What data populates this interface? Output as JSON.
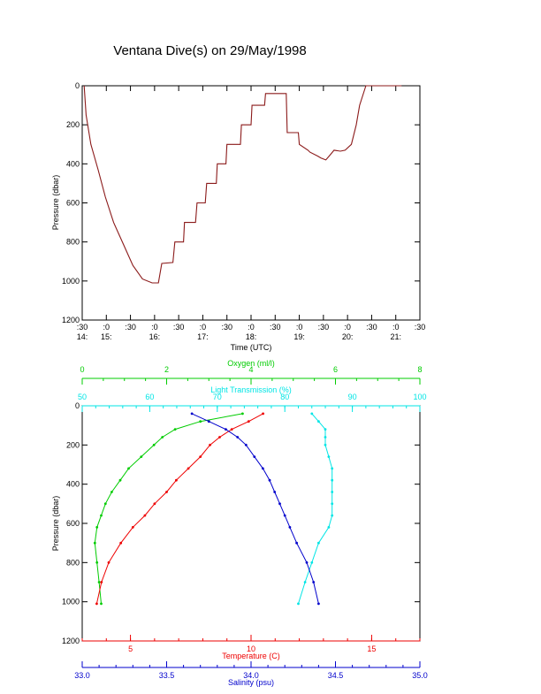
{
  "title": "Ventana Dive(s) on 29/May/1998",
  "colors": {
    "axis": "#000000",
    "trace_top": "#8b1a1a",
    "oxygen": "#00cc00",
    "transmission": "#00e5e5",
    "temperature": "#ee0000",
    "salinity": "#0000cc"
  },
  "chart_data": [
    {
      "type": "line",
      "title": "Ventana Dive(s) on 29/May/1998",
      "xlabel": "Time (UTC)",
      "ylabel": "Pressure (dbar)",
      "x_tick_minutes": [
        ":30",
        ":0",
        ":30",
        ":0",
        ":30",
        ":0",
        ":30",
        ":0",
        ":30",
        ":0",
        ":30",
        ":0",
        ":30",
        ":0",
        ":30"
      ],
      "x_tick_hours": [
        "14:",
        "15:",
        "",
        "16:",
        "",
        "17:",
        "",
        "18:",
        "",
        "19:",
        "",
        "20:",
        "",
        "21:",
        ""
      ],
      "xlim_hours": [
        14.5,
        21.5
      ],
      "ylim": [
        0,
        1200
      ],
      "y_reversed": true,
      "yticks": [
        0,
        200,
        400,
        600,
        800,
        1000,
        1200
      ],
      "series": [
        {
          "x_hours": [
            14.54,
            14.58,
            14.68,
            14.83,
            14.98,
            15.15,
            15.35,
            15.55,
            15.75,
            15.95,
            16.08,
            16.15,
            16.38,
            16.42,
            16.6,
            16.62,
            16.85,
            16.88,
            17.05,
            17.08,
            17.28,
            17.3,
            17.48,
            17.5,
            17.78,
            17.8,
            18.0,
            18.02,
            18.28,
            18.3,
            18.48,
            18.5,
            18.73,
            18.75,
            18.98,
            19.0,
            19.18,
            19.22,
            19.38,
            19.45,
            19.55,
            19.62,
            19.72,
            19.85,
            19.95,
            20.08,
            20.18,
            20.25,
            20.38,
            20.48,
            20.62,
            20.72,
            20.78,
            20.88,
            21.0,
            21.05,
            21.12
          ],
          "pressure": [
            0,
            150,
            300,
            430,
            570,
            700,
            810,
            920,
            990,
            1010,
            1010,
            910,
            905,
            800,
            800,
            700,
            700,
            600,
            600,
            500,
            500,
            400,
            400,
            300,
            300,
            200,
            200,
            100,
            100,
            40,
            40,
            40,
            40,
            240,
            240,
            300,
            330,
            340,
            360,
            370,
            380,
            360,
            330,
            335,
            330,
            300,
            200,
            100,
            0,
            0,
            0,
            0,
            0,
            0,
            0,
            0,
            0
          ]
        }
      ]
    },
    {
      "type": "scatter",
      "ylabel": "Pressure (dbar)",
      "ylim": [
        0,
        1200
      ],
      "y_reversed": true,
      "yticks": [
        0,
        200,
        400,
        600,
        800,
        1000,
        1200
      ],
      "axes": {
        "oxygen": {
          "label": "Oxygen (ml/l)",
          "range": [
            0,
            8
          ],
          "ticks": [
            0,
            2,
            4,
            6,
            8
          ]
        },
        "transmission": {
          "label": "Light Transmission (%)",
          "range": [
            50,
            100
          ],
          "ticks": [
            50,
            60,
            70,
            80,
            90,
            100
          ]
        },
        "temperature": {
          "label": "Temperature (C)",
          "range": [
            3,
            17
          ],
          "ticks": [
            5,
            10,
            15
          ]
        },
        "salinity": {
          "label": "Salinity (psu)",
          "range": [
            33.0,
            35.0
          ],
          "ticks": [
            "33.0",
            "33.5",
            "34.0",
            "34.5",
            "35.0"
          ]
        }
      },
      "series": [
        {
          "name": "oxygen",
          "pressure": [
            40,
            80,
            120,
            160,
            200,
            260,
            320,
            380,
            440,
            500,
            560,
            620,
            700,
            800,
            900,
            1010
          ],
          "values": [
            3.8,
            2.8,
            2.2,
            1.9,
            1.7,
            1.4,
            1.1,
            0.9,
            0.7,
            0.55,
            0.45,
            0.35,
            0.3,
            0.35,
            0.4,
            0.45
          ]
        },
        {
          "name": "transmission",
          "pressure": [
            40,
            80,
            120,
            160,
            200,
            260,
            320,
            380,
            440,
            500,
            560,
            620,
            700,
            800,
            900,
            1010
          ],
          "values": [
            84,
            85,
            86,
            86,
            86,
            86.5,
            87,
            87,
            87,
            87,
            87,
            86.5,
            85,
            84,
            83,
            82
          ]
        },
        {
          "name": "temperature",
          "pressure": [
            40,
            80,
            120,
            160,
            200,
            260,
            320,
            380,
            440,
            500,
            560,
            620,
            700,
            800,
            900,
            1010
          ],
          "values": [
            10.5,
            9.9,
            9.2,
            8.7,
            8.3,
            7.9,
            7.4,
            6.9,
            6.5,
            6.0,
            5.6,
            5.1,
            4.6,
            4.1,
            3.8,
            3.6
          ]
        },
        {
          "name": "salinity",
          "pressure": [
            40,
            80,
            120,
            160,
            200,
            260,
            320,
            380,
            440,
            500,
            560,
            620,
            700,
            800,
            900,
            1010
          ],
          "values": [
            33.65,
            33.75,
            33.85,
            33.92,
            33.97,
            34.02,
            34.07,
            34.11,
            34.14,
            34.17,
            34.2,
            34.23,
            34.27,
            34.33,
            34.37,
            34.4
          ]
        }
      ]
    }
  ]
}
